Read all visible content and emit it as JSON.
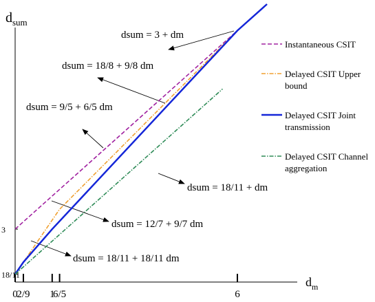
{
  "chart_data": {
    "type": "line",
    "y_label": "d",
    "y_label_sub": "sum",
    "x_label": "d",
    "x_label_sub": "m",
    "xlim": [
      0,
      7.2
    ],
    "ylim": [
      1.4,
      9.8
    ],
    "xticks": [
      0,
      {
        "value": 0.2222,
        "label": "2/9"
      },
      1,
      {
        "value": 1.2,
        "label": "6/5"
      },
      6
    ],
    "yticks": [
      {
        "value": 1.6364,
        "label": "18/11"
      },
      3
    ],
    "grid": false,
    "legend": "right",
    "series": [
      {
        "name": "Instantaneous CSIT",
        "color": "#a020a0",
        "dash": "dashed",
        "x": [
          0,
          6
        ],
        "values": [
          3,
          9
        ]
      },
      {
        "name": "Delayed CSIT Upper bound",
        "color": "#f0a030",
        "dash": "dashdot",
        "x": [
          0,
          0.2222,
          1.2,
          6
        ],
        "values": [
          1.6364,
          2.0,
          3.6,
          9
        ]
      },
      {
        "name": "Delayed CSIT Joint transmission",
        "color": "#1426d8",
        "dash": "solid",
        "x": [
          0,
          0.2222,
          1,
          6,
          6.8
        ],
        "values": [
          1.6364,
          2.0,
          3.0,
          9,
          9.8
        ]
      },
      {
        "name": "Delayed CSIT Channel aggregation",
        "color": "#2e8b57",
        "dash": "dashdot",
        "x": [
          0,
          5.6
        ],
        "values": [
          1.6364,
          7.2364
        ]
      }
    ],
    "annotations": [
      "dsum = 3 + dm",
      "dsum = 18/8 + 9/8 dm",
      "dsum = 9/5 + 6/5 dm",
      "dsum = 18/11 + dm",
      "dsum = 12/7 + 9/7 dm",
      "dsum = 18/11 + 18/11 dm"
    ]
  }
}
